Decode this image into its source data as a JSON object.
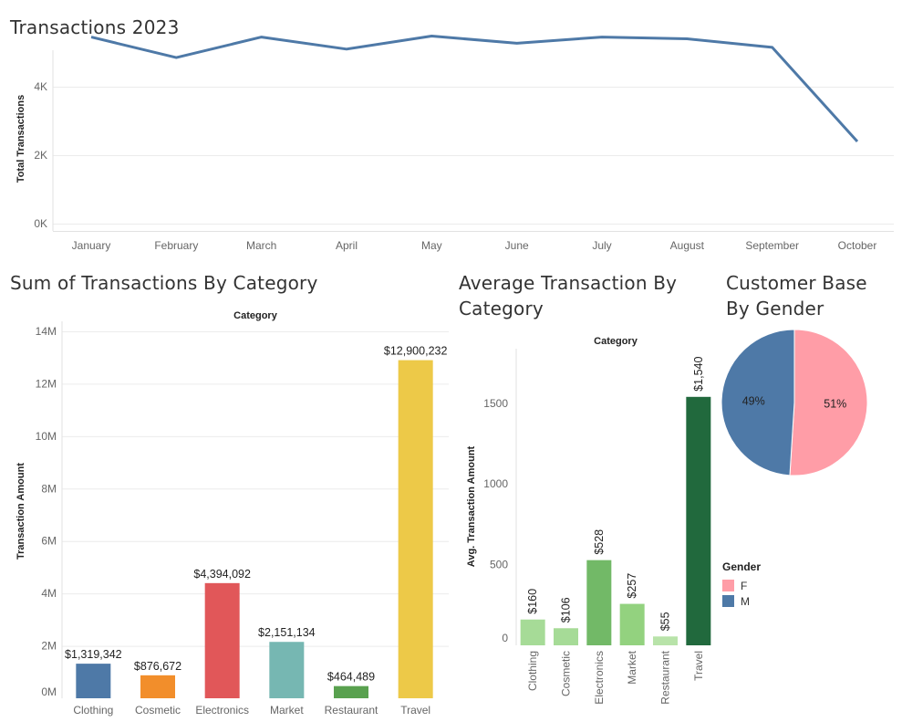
{
  "titles": {
    "line": "Transactions 2023",
    "category_sum": "Sum of Transactions By Category",
    "category_avg_1": "Average Transaction By",
    "category_avg_2": "Category",
    "gender_1": "Customer Base",
    "gender_2": "By Gender"
  },
  "colors": {
    "line": "#4e79a7",
    "gridline": "#ececec",
    "sum_bars": [
      "#4e79a7",
      "#f28e2b",
      "#e15759",
      "#76b7b2",
      "#59a14f",
      "#edc948"
    ],
    "avg_bars": [
      "#a6db97",
      "#a6db97",
      "#72b967",
      "#93d27f",
      "#b8e3a9",
      "#21693d"
    ],
    "pie": {
      "F": "#ff9da7",
      "M": "#4e79a7"
    }
  },
  "chart_data": [
    {
      "id": "line",
      "type": "line",
      "title": "Transactions 2023",
      "xlabel": "",
      "ylabel": "Total Transactions",
      "categories": [
        "January",
        "February",
        "March",
        "April",
        "May",
        "June",
        "July",
        "August",
        "September",
        "October"
      ],
      "values": [
        5450,
        4850,
        5450,
        5100,
        5480,
        5270,
        5450,
        5400,
        5150,
        2400
      ],
      "ylim": [
        0,
        6000
      ],
      "yticks": [
        "0K",
        "2K",
        "4K"
      ],
      "grid": true
    },
    {
      "id": "category_sum",
      "type": "bar",
      "title": "Sum of Transactions By Category",
      "header": "Category",
      "xlabel": "",
      "ylabel": "Transaction Amount",
      "categories": [
        "Clothing",
        "Cosmetic",
        "Electronics",
        "Market",
        "Restaurant",
        "Travel"
      ],
      "values": [
        1319342,
        876672,
        4394092,
        2151134,
        464489,
        12900232
      ],
      "labels": [
        "$1,319,342",
        "$876,672",
        "$4,394,092",
        "$2,151,134",
        "$464,489",
        "$12,900,232"
      ],
      "ylim": [
        0,
        14000000
      ],
      "yticks": [
        "0M",
        "2M",
        "4M",
        "6M",
        "8M",
        "10M",
        "12M",
        "14M"
      ],
      "grid": true
    },
    {
      "id": "category_avg",
      "type": "bar",
      "title": "Average Transaction By Category",
      "header": "Category",
      "xlabel": "",
      "ylabel": "Avg. Transaction Amount",
      "categories": [
        "Clothing",
        "Cosmetic",
        "Electronics",
        "Market",
        "Restaurant",
        "Travel"
      ],
      "values": [
        160,
        106,
        528,
        257,
        55,
        1540
      ],
      "labels": [
        "$160",
        "$106",
        "$528",
        "$257",
        "$55",
        "$1,540"
      ],
      "ylim": [
        0,
        1850
      ],
      "yticks": [
        "0",
        "500",
        "1000",
        "1500"
      ],
      "grid": false
    },
    {
      "id": "gender",
      "type": "pie",
      "title": "Customer Base By Gender",
      "legend_title": "Gender",
      "legend_position": "bottom-left",
      "slices": [
        {
          "name": "F",
          "value": 51,
          "label": "51%"
        },
        {
          "name": "M",
          "value": 49,
          "label": "49%"
        }
      ]
    }
  ]
}
